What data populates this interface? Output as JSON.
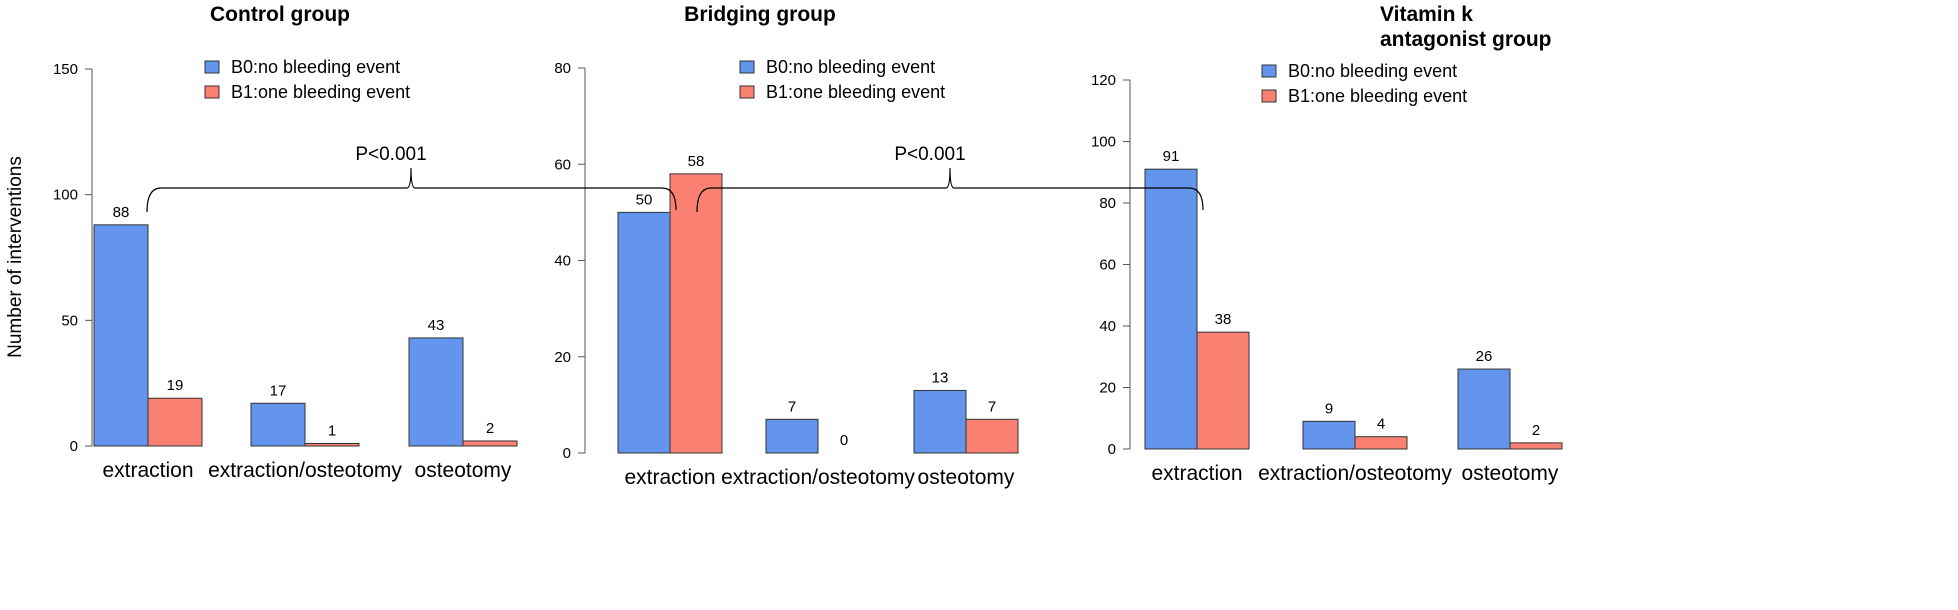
{
  "colors": {
    "B0": "#6495ED",
    "B1": "#FA8072",
    "bar_stroke": "#333333"
  },
  "y_axis_title": "Number of interventions",
  "legend": {
    "B0": "B0:no bleeding event",
    "B1": "B1:one bleeding event"
  },
  "chart_data": [
    {
      "type": "bar",
      "title": "Control group",
      "categories": [
        "extraction",
        "extraction/osteotomy",
        "osteotomy"
      ],
      "series": [
        {
          "name": "B0:no bleeding event",
          "values": [
            88,
            17,
            43
          ]
        },
        {
          "name": "B1:one bleeding event",
          "values": [
            19,
            1,
            2
          ]
        }
      ],
      "ylim": [
        0,
        150
      ],
      "yticks": [
        0,
        50,
        100,
        150
      ],
      "ylabel": "Number of interventions",
      "legend_position": "top-right"
    },
    {
      "type": "bar",
      "title": "Bridging group",
      "categories": [
        "extraction",
        "extraction/osteotomy",
        "osteotomy"
      ],
      "series": [
        {
          "name": "B0:no bleeding event",
          "values": [
            50,
            7,
            13
          ]
        },
        {
          "name": "B1:one bleeding event",
          "values": [
            58,
            0,
            7
          ]
        }
      ],
      "ylim": [
        0,
        80
      ],
      "yticks": [
        0,
        20,
        40,
        60,
        80
      ],
      "legend_position": "top-right"
    },
    {
      "type": "bar",
      "title": "Vitamin k antagonist group",
      "title_lines": [
        "Vitamin k",
        "antagonist group"
      ],
      "categories": [
        "extraction",
        "extraction/osteotomy",
        "osteotomy"
      ],
      "series": [
        {
          "name": "B0:no bleeding event",
          "values": [
            91,
            9,
            26
          ]
        },
        {
          "name": "B1:one bleeding event",
          "values": [
            38,
            4,
            2
          ]
        }
      ],
      "ylim": [
        0,
        120
      ],
      "yticks": [
        0,
        20,
        40,
        60,
        80,
        100,
        120
      ],
      "legend_position": "top-right"
    }
  ],
  "comparisons": [
    {
      "label": "P<0.001",
      "from": "Control group extraction",
      "to": "Bridging group extraction"
    },
    {
      "label": "P<0.001",
      "from": "Bridging group extraction",
      "to": "Vitamin k antagonist group extraction"
    }
  ]
}
